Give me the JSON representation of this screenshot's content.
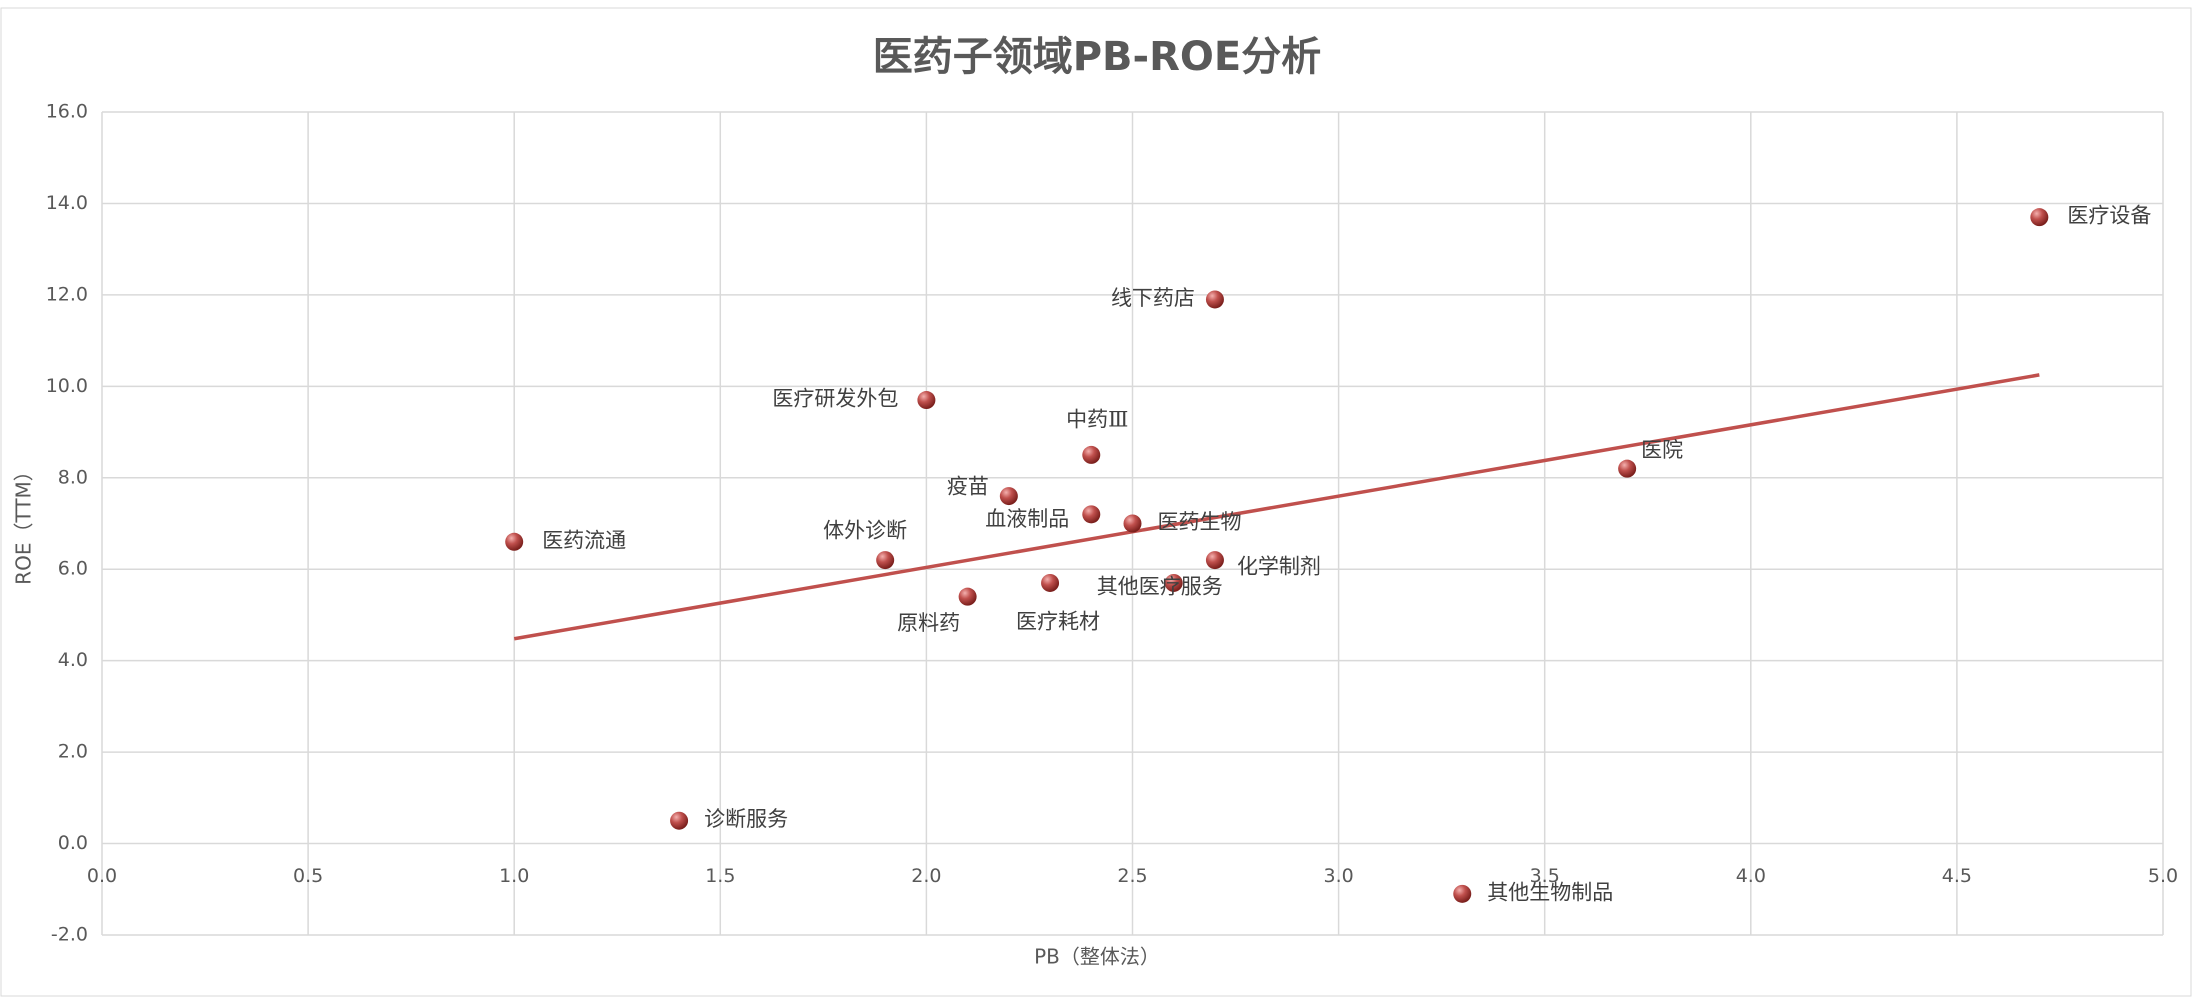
{
  "chart_data": {
    "type": "scatter",
    "title": "医药子领域PB-ROE分析",
    "x_label": "PB（整体法）",
    "y_label": "ROE（TTM）",
    "color": "#c0504d",
    "points": [
      {
        "label": "医疗设备",
        "x": 4.7,
        "y": 13.7
      },
      {
        "label": "线下药店",
        "x": 2.7,
        "y": 11.9
      },
      {
        "label": "医疗研发外包",
        "x": 2.0,
        "y": 9.7
      },
      {
        "label": "中药Ⅲ",
        "x": 2.4,
        "y": 8.5
      },
      {
        "label": "医院",
        "x": 3.7,
        "y": 8.2
      },
      {
        "label": "疫苗",
        "x": 2.2,
        "y": 7.6
      },
      {
        "label": "血液制品",
        "x": 2.4,
        "y": 7.2
      },
      {
        "label": "医药生物",
        "x": 2.5,
        "y": 7.0
      },
      {
        "label": "医药流通",
        "x": 1.0,
        "y": 6.6
      },
      {
        "label": "体外诊断",
        "x": 1.9,
        "y": 6.2
      },
      {
        "label": "化学制剂",
        "x": 2.7,
        "y": 6.2
      },
      {
        "label": "其他医疗服务",
        "x": 2.6,
        "y": 5.7
      },
      {
        "label": "医疗耗材",
        "x": 2.3,
        "y": 5.7
      },
      {
        "label": "原料药",
        "x": 2.1,
        "y": 5.4
      },
      {
        "label": "诊断服务",
        "x": 1.4,
        "y": 0.5
      },
      {
        "label": "其他生物制品",
        "x": 3.3,
        "y": -1.1
      }
    ],
    "trendline": {
      "x": [
        1.0,
        4.7
      ],
      "values": [
        4.48,
        10.25
      ]
    },
    "xlim": [
      0,
      5
    ],
    "xticks": [
      {
        "value": 0,
        "label": "0.0"
      },
      {
        "value": 0.5,
        "label": "0.5"
      },
      {
        "value": 1,
        "label": "1.0"
      },
      {
        "value": 1.5,
        "label": "1.5"
      },
      {
        "value": 2,
        "label": "2.0"
      },
      {
        "value": 2.5,
        "label": "2.5"
      },
      {
        "value": 3,
        "label": "3.0"
      },
      {
        "value": 3.5,
        "label": "3.5"
      },
      {
        "value": 4,
        "label": "4.0"
      },
      {
        "value": 4.5,
        "label": "4.5"
      },
      {
        "value": 5,
        "label": "5.0"
      }
    ],
    "ylim": [
      -2,
      16
    ],
    "yticks": [
      {
        "value": -2,
        "label": "-2.0"
      },
      {
        "value": 0,
        "label": "0.0"
      },
      {
        "value": 2,
        "label": "2.0"
      },
      {
        "value": 4,
        "label": "4.0"
      },
      {
        "value": 6,
        "label": "6.0"
      },
      {
        "value": 8,
        "label": "8.0"
      },
      {
        "value": 10,
        "label": "10.0"
      },
      {
        "value": 12,
        "label": "12.0"
      },
      {
        "value": 14,
        "label": "14.0"
      },
      {
        "value": 16,
        "label": "16.0"
      }
    ],
    "grid": true
  }
}
